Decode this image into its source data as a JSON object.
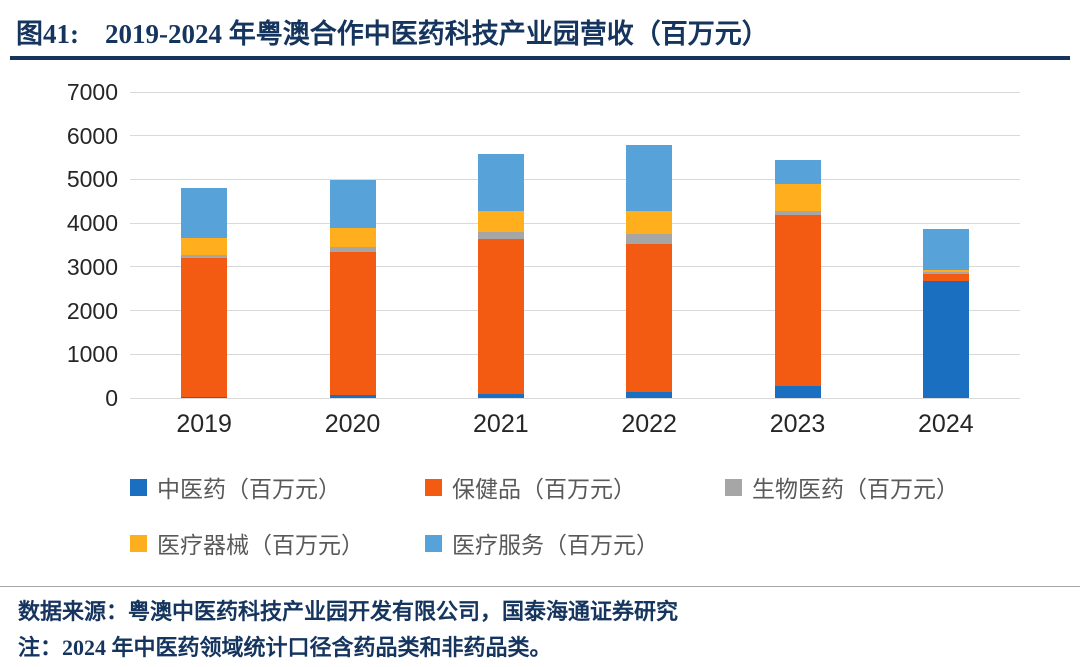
{
  "header": {
    "figure_label": "图41:",
    "title": "2019-2024 年粤澳合作中医药科技产业园营收（百万元）"
  },
  "axis": {
    "yticks": [
      "0",
      "1000",
      "2000",
      "3000",
      "4000",
      "5000",
      "6000",
      "7000"
    ]
  },
  "chart_data": {
    "type": "bar",
    "stacked": true,
    "title": "2019-2024 年粤澳合作中医药科技产业园营收（百万元）",
    "xlabel": "",
    "ylabel": "",
    "ylim": [
      0,
      7000
    ],
    "ytick_interval": 1000,
    "grid": true,
    "legend_position": "bottom",
    "categories": [
      "2019",
      "2020",
      "2021",
      "2022",
      "2023",
      "2024"
    ],
    "series": [
      {
        "name": "中医药（百万元）",
        "color": "#1B6FC0",
        "values": [
          20,
          80,
          90,
          140,
          280,
          2680
        ]
      },
      {
        "name": "保健品（百万元）",
        "color": "#F25B11",
        "values": [
          3180,
          3270,
          3550,
          3380,
          3900,
          160
        ]
      },
      {
        "name": "生物医药（百万元）",
        "color": "#A6A6A6",
        "values": [
          70,
          100,
          150,
          240,
          100,
          40
        ]
      },
      {
        "name": "医疗器械（百万元）",
        "color": "#FFAF1E",
        "values": [
          380,
          450,
          490,
          510,
          620,
          50
        ]
      },
      {
        "name": "医疗服务（百万元）",
        "color": "#56A2D9",
        "values": [
          1150,
          1080,
          1300,
          1530,
          550,
          930
        ]
      }
    ]
  },
  "footer": {
    "source": "数据来源：粤澳中医药科技产业园开发有限公司，国泰海通证券研究",
    "note": "注：2024 年中医药领域统计口径含药品类和非药品类。"
  }
}
